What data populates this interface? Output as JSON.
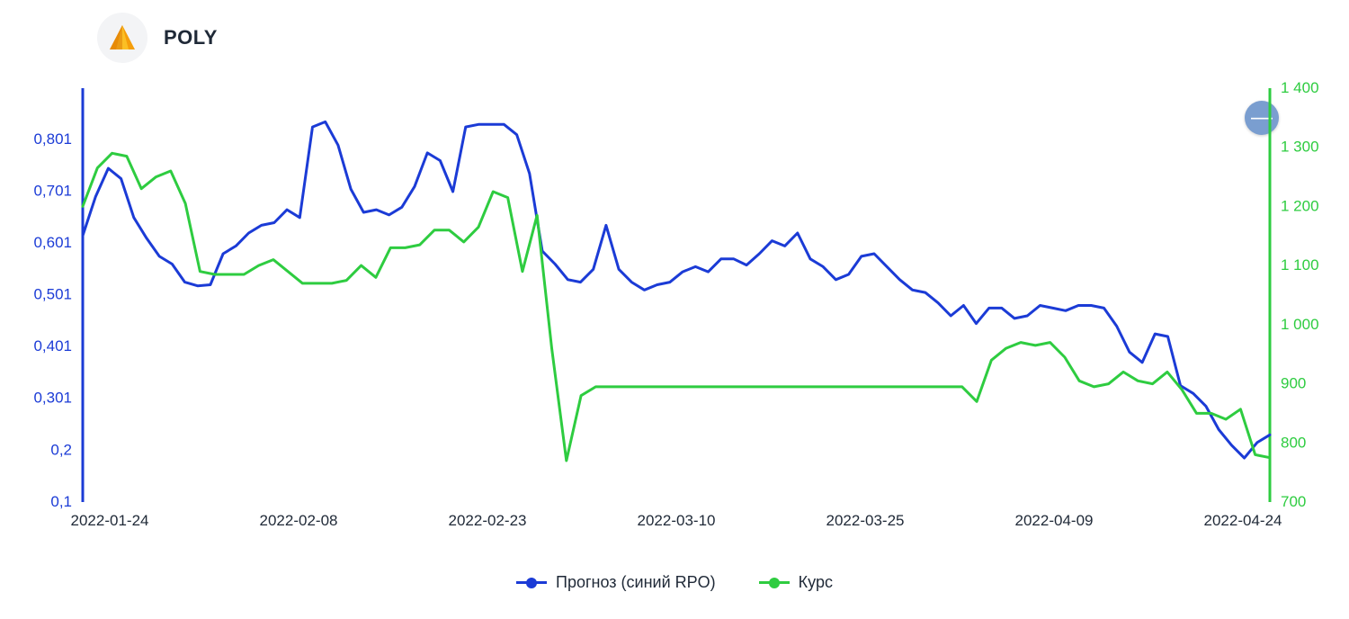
{
  "header": {
    "ticker": "POLY",
    "logo_colors": {
      "outer": "#f59e0b",
      "inner": "#fbbf24",
      "shadow": "#d97706"
    }
  },
  "collapse_button": {
    "label": "—",
    "bg": "#7a9ed0",
    "fg": "#ffffff"
  },
  "chart": {
    "type": "line-dual-axis",
    "background_color": "#ffffff",
    "line_width": 3,
    "font_family": "Arial",
    "axis_left": {
      "color": "#1b3bd6",
      "label_fontsize": 17,
      "ylim": [
        0.1,
        0.9
      ],
      "ticks": [
        {
          "v": 0.1,
          "label": "0,1"
        },
        {
          "v": 0.2,
          "label": "0,2"
        },
        {
          "v": 0.301,
          "label": "0,301"
        },
        {
          "v": 0.401,
          "label": "0,401"
        },
        {
          "v": 0.501,
          "label": "0,501"
        },
        {
          "v": 0.601,
          "label": "0,601"
        },
        {
          "v": 0.701,
          "label": "0,701"
        },
        {
          "v": 0.801,
          "label": "0,801"
        }
      ]
    },
    "axis_right": {
      "color": "#2ecc40",
      "label_fontsize": 17,
      "ylim": [
        700,
        1400
      ],
      "ticks": [
        {
          "v": 700,
          "label": "700"
        },
        {
          "v": 800,
          "label": "800"
        },
        {
          "v": 900,
          "label": "900"
        },
        {
          "v": 1000,
          "label": "1 000"
        },
        {
          "v": 1100,
          "label": "1 100"
        },
        {
          "v": 1200,
          "label": "1 200"
        },
        {
          "v": 1300,
          "label": "1 300"
        },
        {
          "v": 1400,
          "label": "1 400"
        }
      ]
    },
    "axis_x": {
      "color": "#1f2937",
      "label_fontsize": 17,
      "ticks": [
        "2022-01-24",
        "2022-02-08",
        "2022-02-23",
        "2022-03-10",
        "2022-03-25",
        "2022-04-09",
        "2022-04-24"
      ]
    },
    "series": [
      {
        "name": "forecast",
        "legend_label": "Прогноз (синий RPO)",
        "color": "#1b3bd6",
        "axis": "left",
        "data": [
          0.615,
          0.69,
          0.745,
          0.725,
          0.65,
          0.61,
          0.575,
          0.56,
          0.525,
          0.518,
          0.52,
          0.58,
          0.595,
          0.62,
          0.635,
          0.64,
          0.665,
          0.65,
          0.825,
          0.835,
          0.79,
          0.705,
          0.66,
          0.665,
          0.655,
          0.67,
          0.71,
          0.775,
          0.76,
          0.7,
          0.825,
          0.83,
          0.83,
          0.83,
          0.81,
          0.735,
          0.585,
          0.56,
          0.53,
          0.525,
          0.55,
          0.635,
          0.55,
          0.525,
          0.51,
          0.52,
          0.525,
          0.545,
          0.555,
          0.545,
          0.57,
          0.57,
          0.558,
          0.58,
          0.605,
          0.595,
          0.62,
          0.57,
          0.555,
          0.53,
          0.54,
          0.575,
          0.58,
          0.555,
          0.53,
          0.51,
          0.505,
          0.485,
          0.46,
          0.48,
          0.445,
          0.475,
          0.475,
          0.455,
          0.46,
          0.48,
          0.475,
          0.47,
          0.48,
          0.48,
          0.475,
          0.44,
          0.39,
          0.37,
          0.425,
          0.42,
          0.325,
          0.31,
          0.285,
          0.24,
          0.21,
          0.185,
          0.215,
          0.23
        ]
      },
      {
        "name": "price",
        "legend_label": "Курс",
        "color": "#2ecc40",
        "axis": "right",
        "data": [
          1200,
          1265,
          1290,
          1285,
          1230,
          1250,
          1260,
          1205,
          1090,
          1085,
          1085,
          1085,
          1100,
          1110,
          1090,
          1070,
          1070,
          1070,
          1075,
          1100,
          1080,
          1130,
          1130,
          1135,
          1160,
          1160,
          1140,
          1165,
          1225,
          1215,
          1090,
          1185,
          960,
          770,
          880,
          895,
          895,
          895,
          895,
          895,
          895,
          895,
          895,
          895,
          895,
          895,
          895,
          895,
          895,
          895,
          895,
          895,
          895,
          895,
          895,
          895,
          895,
          895,
          895,
          895,
          895,
          870,
          940,
          960,
          970,
          965,
          970,
          945,
          905,
          895,
          900,
          920,
          905,
          900,
          920,
          890,
          850,
          850,
          840,
          857,
          780,
          775
        ]
      }
    ],
    "legend": {
      "fontsize": 18,
      "position": "bottom-center",
      "marker": "line-with-dot"
    }
  }
}
